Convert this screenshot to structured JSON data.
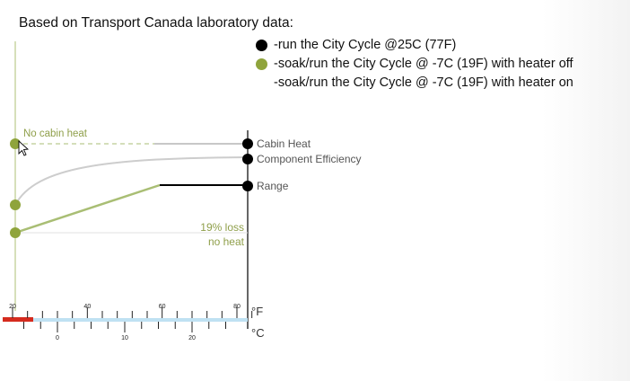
{
  "colors": {
    "black": "#000000",
    "green": "#8fa43c",
    "green_line": "#a9be74",
    "grey_line": "#c8c8c8",
    "label_grey": "#555555",
    "label_green": "#8f9f4a",
    "celsius_bar": "#bfe1f2",
    "celsius_red": "#d52b1e"
  },
  "title": "Based on Transport Canada laboratory data:",
  "legend": [
    {
      "marker": "black",
      "label": "-run the City Cycle @25C (77F)"
    },
    {
      "marker": "green",
      "label": "-soak/run the City Cycle @ -7C (19F) with heater off"
    },
    {
      "marker": "none",
      "label": "-soak/run the City Cycle @ -7C (19F) with heater on"
    }
  ],
  "chart_data": {
    "type": "line",
    "note_no_cabin_heat": "No cabin heat",
    "loss_label_1": "19% loss",
    "loss_label_2": "no heat",
    "series": [
      {
        "name": "Cabin Heat",
        "from_marker": "green",
        "to_marker": "black",
        "style": "dashed-then-solid"
      },
      {
        "name": "Component Efficiency",
        "from_marker": "green",
        "to_marker": "black",
        "style": "curve"
      },
      {
        "name": "Range",
        "from_marker": "green",
        "to_marker": "black",
        "style": "rising-then-flat"
      }
    ],
    "fahrenheit_axis": {
      "unit": "°F",
      "min": 20,
      "max": 80,
      "ticks": [
        "20",
        "40",
        "60",
        "80"
      ]
    },
    "celsius_axis": {
      "unit": "°C",
      "min": -7,
      "max": 25,
      "ticks": [
        "0",
        "10",
        "20"
      ]
    }
  }
}
